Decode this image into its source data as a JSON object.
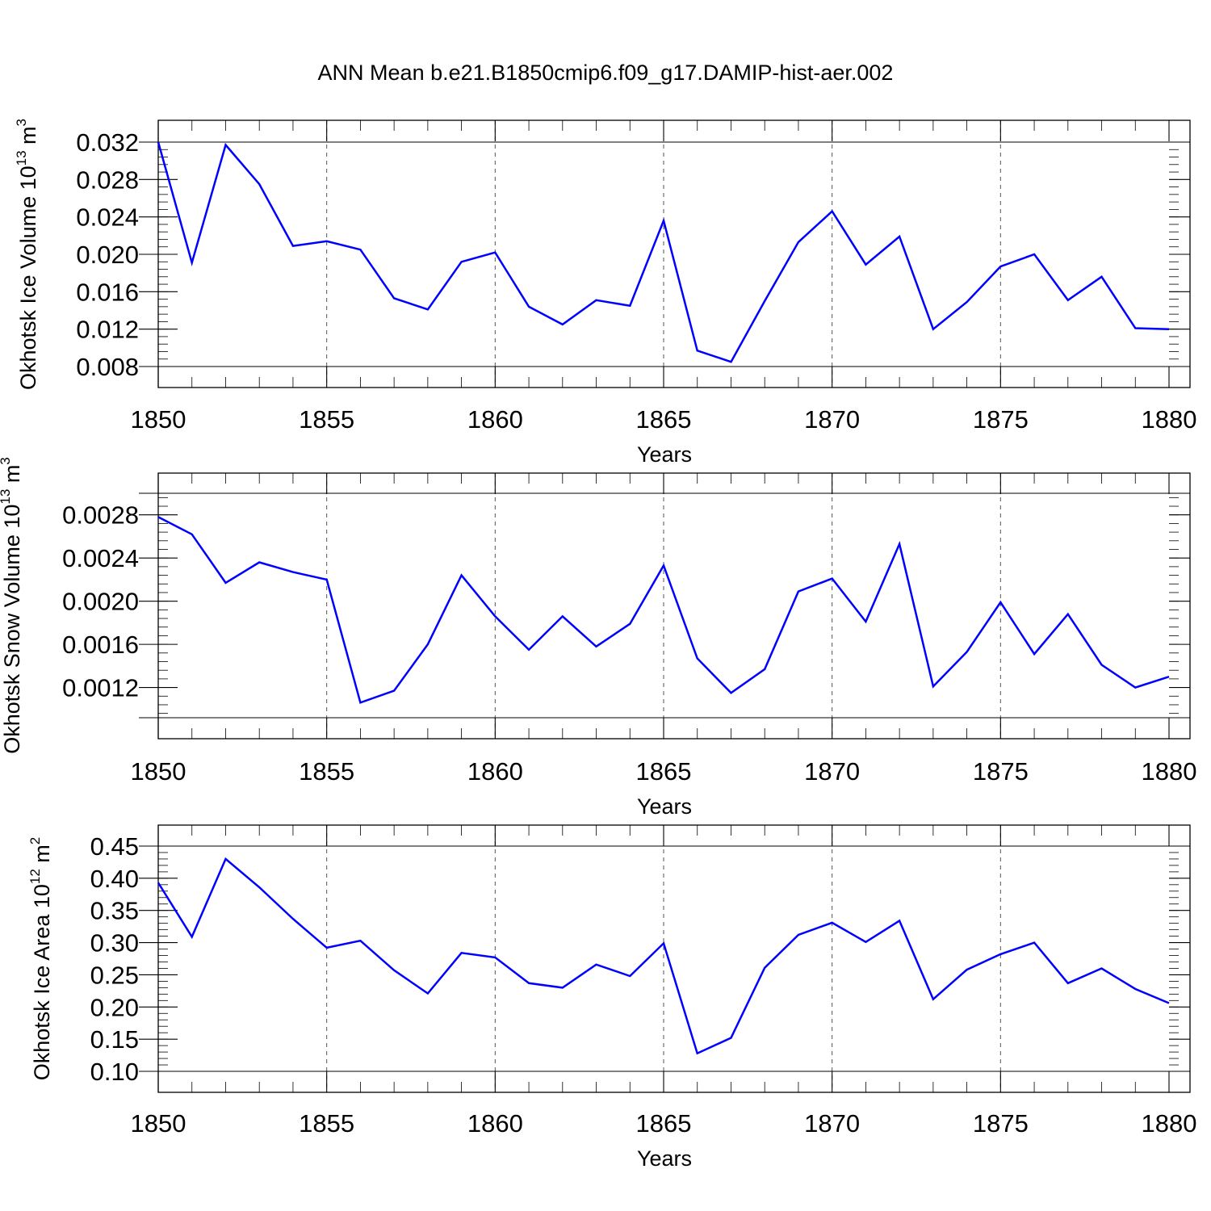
{
  "title": "ANN Mean b.e21.B1850cmip6.f09_g17.DAMIP-hist-aer.002",
  "colors": {
    "series": "#0000ff",
    "frame": "#000000",
    "grid": "#555555"
  },
  "chart_data": [
    {
      "type": "line",
      "ylabel": {
        "text": "Okhotsk Ice Volume 10",
        "sup": "13",
        "unit": " m",
        "unit_sup": "3"
      },
      "xlabel": "Years",
      "xlim": [
        1850,
        1880
      ],
      "ylim": [
        0.008,
        0.032
      ],
      "xticks": [
        "1850",
        "1855",
        "1860",
        "1865",
        "1870",
        "1875",
        "1880"
      ],
      "yticks": [
        "0.008",
        "0.012",
        "0.016",
        "0.020",
        "0.024",
        "0.028",
        "0.032"
      ],
      "grid": "vertical dashed at major x ticks",
      "x": [
        1850,
        1851,
        1852,
        1853,
        1854,
        1855,
        1856,
        1857,
        1858,
        1859,
        1860,
        1861,
        1862,
        1863,
        1864,
        1865,
        1866,
        1867,
        1868,
        1869,
        1870,
        1871,
        1872,
        1873,
        1874,
        1875,
        1876,
        1877,
        1878,
        1879,
        1880
      ],
      "values": [
        0.032,
        0.0191,
        0.0317,
        0.0275,
        0.0209,
        0.0214,
        0.0205,
        0.0153,
        0.0141,
        0.0192,
        0.0202,
        0.0144,
        0.0125,
        0.0151,
        0.0145,
        0.0236,
        0.0097,
        0.0085,
        0.015,
        0.0213,
        0.0246,
        0.0189,
        0.0219,
        0.012,
        0.0149,
        0.0187,
        0.02,
        0.0151,
        0.0176,
        0.0121,
        0.012
      ]
    },
    {
      "type": "line",
      "ylabel": {
        "text": "Okhotsk Snow Volume 10",
        "sup": "13",
        "unit": " m",
        "unit_sup": "3"
      },
      "xlabel": "Years",
      "xlim": [
        1850,
        1880
      ],
      "ylim": [
        0.00092,
        0.003
      ],
      "yticks_at": [
        0.0012,
        0.0016,
        0.002,
        0.0024,
        0.0028
      ],
      "xticks": [
        "1850",
        "1855",
        "1860",
        "1865",
        "1870",
        "1875",
        "1880"
      ],
      "yticks": [
        "0.0012",
        "0.0016",
        "0.0020",
        "0.0024",
        "0.0028"
      ],
      "grid": "vertical dashed at major x ticks",
      "x": [
        1850,
        1851,
        1852,
        1853,
        1854,
        1855,
        1856,
        1857,
        1858,
        1859,
        1860,
        1861,
        1862,
        1863,
        1864,
        1865,
        1866,
        1867,
        1868,
        1869,
        1870,
        1871,
        1872,
        1873,
        1874,
        1875,
        1876,
        1877,
        1878,
        1879,
        1880
      ],
      "values": [
        0.00278,
        0.00262,
        0.00217,
        0.00236,
        0.00227,
        0.0022,
        0.00106,
        0.00117,
        0.0016,
        0.00224,
        0.00186,
        0.00155,
        0.00186,
        0.00158,
        0.00179,
        0.00233,
        0.00147,
        0.00115,
        0.00137,
        0.00209,
        0.00221,
        0.00181,
        0.00253,
        0.00121,
        0.00153,
        0.00199,
        0.00151,
        0.00188,
        0.00141,
        0.0012,
        0.0013
      ]
    },
    {
      "type": "line",
      "ylabel": {
        "text": "Okhotsk Ice Area 10",
        "sup": "12",
        "unit": " m",
        "unit_sup": "2"
      },
      "xlabel": "Years",
      "xlim": [
        1850,
        1880
      ],
      "ylim": [
        0.1,
        0.45
      ],
      "xticks": [
        "1850",
        "1855",
        "1860",
        "1865",
        "1870",
        "1875",
        "1880"
      ],
      "yticks": [
        "0.10",
        "0.15",
        "0.20",
        "0.25",
        "0.30",
        "0.35",
        "0.40",
        "0.45"
      ],
      "grid": "vertical dashed at major x ticks",
      "x": [
        1850,
        1851,
        1852,
        1853,
        1854,
        1855,
        1856,
        1857,
        1858,
        1859,
        1860,
        1861,
        1862,
        1863,
        1864,
        1865,
        1866,
        1867,
        1868,
        1869,
        1870,
        1871,
        1872,
        1873,
        1874,
        1875,
        1876,
        1877,
        1878,
        1879,
        1880
      ],
      "values": [
        0.393,
        0.309,
        0.43,
        0.386,
        0.337,
        0.292,
        0.303,
        0.257,
        0.221,
        0.284,
        0.277,
        0.237,
        0.23,
        0.266,
        0.248,
        0.299,
        0.128,
        0.152,
        0.261,
        0.312,
        0.331,
        0.301,
        0.334,
        0.212,
        0.258,
        0.282,
        0.3,
        0.237,
        0.26,
        0.228,
        0.206
      ]
    }
  ]
}
